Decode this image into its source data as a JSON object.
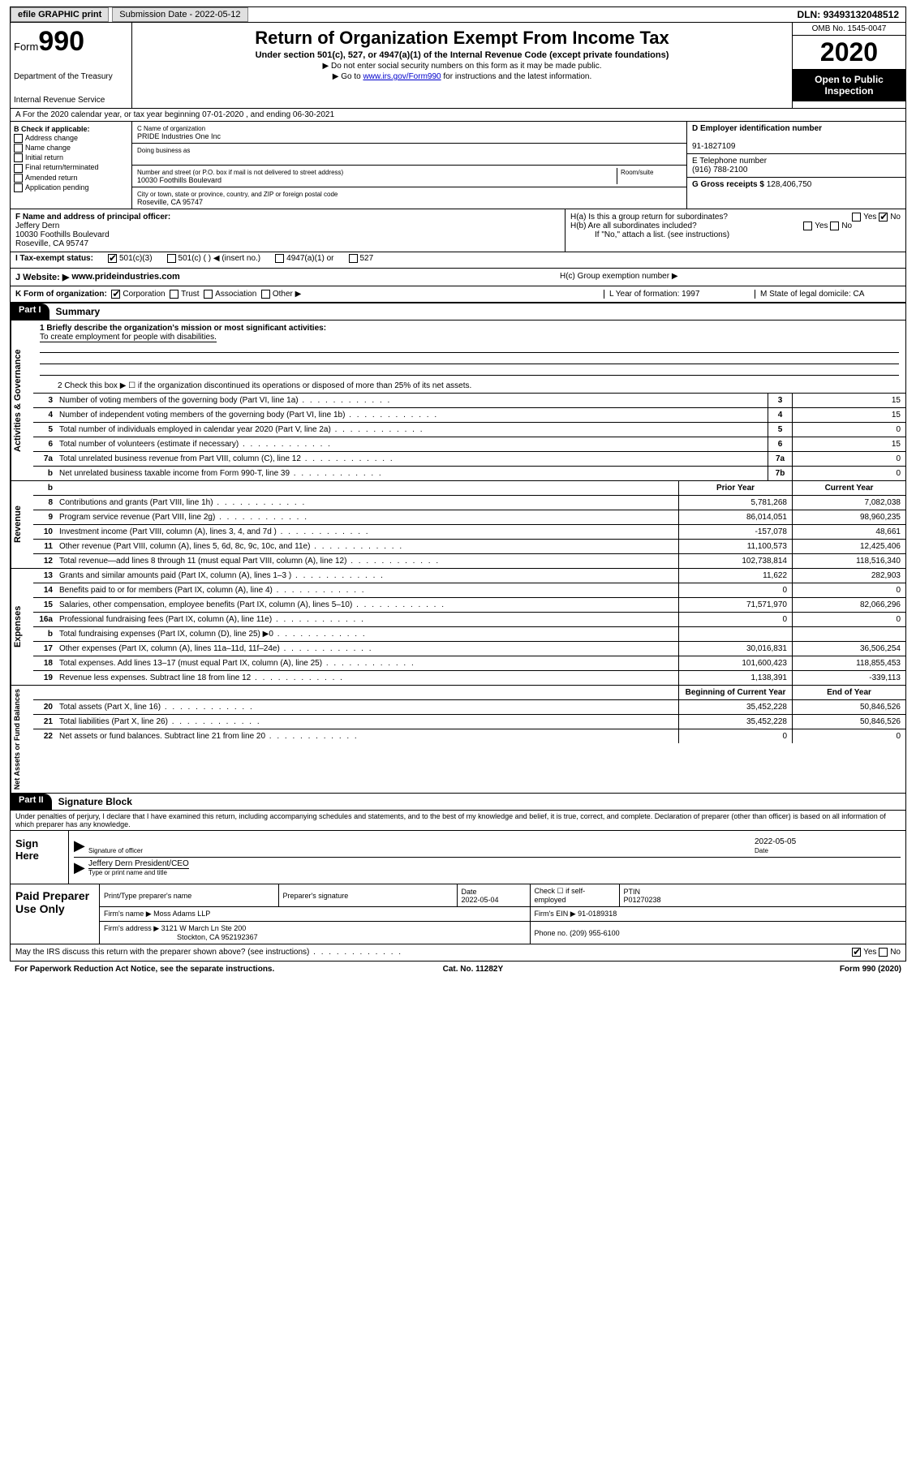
{
  "topbar": {
    "efile": "efile GRAPHIC print",
    "subm_label": "Submission Date",
    "subm_date": "2022-05-12",
    "dln_label": "DLN:",
    "dln": "93493132048512"
  },
  "header": {
    "form_label": "Form",
    "form_num": "990",
    "dept1": "Department of the Treasury",
    "dept2": "Internal Revenue Service",
    "title": "Return of Organization Exempt From Income Tax",
    "sub": "Under section 501(c), 527, or 4947(a)(1) of the Internal Revenue Code (except private foundations)",
    "note1": "▶ Do not enter social security numbers on this form as it may be made public.",
    "note2_pre": "▶ Go to ",
    "note2_link": "www.irs.gov/Form990",
    "note2_post": " for instructions and the latest information.",
    "omb": "OMB No. 1545-0047",
    "year": "2020",
    "inspect": "Open to Public Inspection"
  },
  "period": {
    "text": "A   For the 2020 calendar year, or tax year beginning 07-01-2020   , and ending 06-30-2021"
  },
  "sectB": {
    "label": "B Check if applicable:",
    "opts": [
      "Address change",
      "Name change",
      "Initial return",
      "Final return/terminated",
      "Amended return",
      "Application pending"
    ]
  },
  "sectC": {
    "c_label": "C Name of organization",
    "org": "PRIDE Industries One Inc",
    "dba_label": "Doing business as",
    "addr_label": "Number and street (or P.O. box if mail is not delivered to street address)",
    "room_label": "Room/suite",
    "addr": "10030 Foothills Boulevard",
    "city_label": "City or town, state or province, country, and ZIP or foreign postal code",
    "city": "Roseville, CA  95747"
  },
  "sectD": {
    "label": "D Employer identification number",
    "ein": "91-1827109"
  },
  "sectE": {
    "label": "E Telephone number",
    "phone": "(916) 788-2100"
  },
  "sectG": {
    "label": "G Gross receipts $",
    "amt": "128,406,750"
  },
  "sectF": {
    "label": "F  Name and address of principal officer:",
    "name": "Jeffery Dern",
    "addr1": "10030 Foothills Boulevard",
    "addr2": "Roseville, CA  95747"
  },
  "sectH": {
    "ha": "H(a)  Is this a group return for subordinates?",
    "ha_ans": "No",
    "hb": "H(b)  Are all subordinates included?",
    "hb_note": "If \"No,\" attach a list. (see instructions)",
    "hc": "H(c)  Group exemption number ▶"
  },
  "sectI": {
    "label": "I   Tax-exempt status:",
    "o1": "501(c)(3)",
    "o2": "501(c) (  ) ◀ (insert no.)",
    "o3": "4947(a)(1) or",
    "o4": "527"
  },
  "sectJ": {
    "label": "J   Website: ▶",
    "url": "www.prideindustries.com"
  },
  "sectK": {
    "label": "K Form of organization:",
    "o1": "Corporation",
    "o2": "Trust",
    "o3": "Association",
    "o4": "Other ▶",
    "L": "L Year of formation: 1997",
    "M": "M State of legal domicile: CA"
  },
  "part1": {
    "label": "Part I",
    "title": "Summary"
  },
  "mission": {
    "q": "1  Briefly describe the organization's mission or most significant activities:",
    "text": "To create employment for people with disabilities."
  },
  "q2": "2    Check this box ▶ ☐  if the organization discontinued its operations or disposed of more than 25% of its net assets.",
  "side": {
    "actgov": "Activities & Governance",
    "rev": "Revenue",
    "exp": "Expenses",
    "net": "Net Assets or Fund Balances"
  },
  "lines_gov": [
    {
      "n": "3",
      "d": "Number of voting members of the governing body (Part VI, line 1a)",
      "b": "3",
      "v": "15"
    },
    {
      "n": "4",
      "d": "Number of independent voting members of the governing body (Part VI, line 1b)",
      "b": "4",
      "v": "15"
    },
    {
      "n": "5",
      "d": "Total number of individuals employed in calendar year 2020 (Part V, line 2a)",
      "b": "5",
      "v": "0"
    },
    {
      "n": "6",
      "d": "Total number of volunteers (estimate if necessary)",
      "b": "6",
      "v": "15"
    },
    {
      "n": "7a",
      "d": "Total unrelated business revenue from Part VIII, column (C), line 12",
      "b": "7a",
      "v": "0"
    },
    {
      "n": "b",
      "d": "Net unrelated business taxable income from Form 990-T, line 39",
      "b": "7b",
      "v": "0"
    }
  ],
  "col_hdr": {
    "py": "Prior Year",
    "cy": "Current Year",
    "bcy": "Beginning of Current Year",
    "eoy": "End of Year"
  },
  "lines_rev": [
    {
      "n": "8",
      "d": "Contributions and grants (Part VIII, line 1h)",
      "py": "5,781,268",
      "cy": "7,082,038"
    },
    {
      "n": "9",
      "d": "Program service revenue (Part VIII, line 2g)",
      "py": "86,014,051",
      "cy": "98,960,235"
    },
    {
      "n": "10",
      "d": "Investment income (Part VIII, column (A), lines 3, 4, and 7d )",
      "py": "-157,078",
      "cy": "48,661"
    },
    {
      "n": "11",
      "d": "Other revenue (Part VIII, column (A), lines 5, 6d, 8c, 9c, 10c, and 11e)",
      "py": "11,100,573",
      "cy": "12,425,406"
    },
    {
      "n": "12",
      "d": "Total revenue—add lines 8 through 11 (must equal Part VIII, column (A), line 12)",
      "py": "102,738,814",
      "cy": "118,516,340"
    }
  ],
  "lines_exp": [
    {
      "n": "13",
      "d": "Grants and similar amounts paid (Part IX, column (A), lines 1–3 )",
      "py": "11,622",
      "cy": "282,903"
    },
    {
      "n": "14",
      "d": "Benefits paid to or for members (Part IX, column (A), line 4)",
      "py": "0",
      "cy": "0"
    },
    {
      "n": "15",
      "d": "Salaries, other compensation, employee benefits (Part IX, column (A), lines 5–10)",
      "py": "71,571,970",
      "cy": "82,066,296"
    },
    {
      "n": "16a",
      "d": "Professional fundraising fees (Part IX, column (A), line 11e)",
      "py": "0",
      "cy": "0"
    },
    {
      "n": "b",
      "d": "Total fundraising expenses (Part IX, column (D), line 25) ▶0",
      "py": "",
      "cy": ""
    },
    {
      "n": "17",
      "d": "Other expenses (Part IX, column (A), lines 11a–11d, 11f–24e)",
      "py": "30,016,831",
      "cy": "36,506,254"
    },
    {
      "n": "18",
      "d": "Total expenses. Add lines 13–17 (must equal Part IX, column (A), line 25)",
      "py": "101,600,423",
      "cy": "118,855,453"
    },
    {
      "n": "19",
      "d": "Revenue less expenses. Subtract line 18 from line 12",
      "py": "1,138,391",
      "cy": "-339,113"
    }
  ],
  "lines_net": [
    {
      "n": "20",
      "d": "Total assets (Part X, line 16)",
      "py": "35,452,228",
      "cy": "50,846,526"
    },
    {
      "n": "21",
      "d": "Total liabilities (Part X, line 26)",
      "py": "35,452,228",
      "cy": "50,846,526"
    },
    {
      "n": "22",
      "d": "Net assets or fund balances. Subtract line 21 from line 20",
      "py": "0",
      "cy": "0"
    }
  ],
  "part2": {
    "label": "Part II",
    "title": "Signature Block"
  },
  "perjury": "Under penalties of perjury, I declare that I have examined this return, including accompanying schedules and statements, and to the best of my knowledge and belief, it is true, correct, and complete. Declaration of preparer (other than officer) is based on all information of which preparer has any knowledge.",
  "sign": {
    "here": "Sign Here",
    "sigoff": "Signature of officer",
    "date": "2022-05-05",
    "date_lbl": "Date",
    "name": "Jeffery Dern  President/CEO",
    "name_lbl": "Type or print name and title"
  },
  "paid": {
    "label": "Paid Preparer Use Only",
    "h1": "Print/Type preparer's name",
    "h2": "Preparer's signature",
    "h3": "Date",
    "h3v": "2022-05-04",
    "h4": "Check ☐ if self-employed",
    "h5": "PTIN",
    "h5v": "P01270238",
    "firm_lbl": "Firm's name    ▶",
    "firm": "Moss Adams LLP",
    "ein_lbl": "Firm's EIN ▶",
    "ein": "91-0189318",
    "addr_lbl": "Firm's address ▶",
    "addr1": "3121 W March Ln Ste 200",
    "addr2": "Stockton, CA  952192367",
    "ph_lbl": "Phone no.",
    "ph": "(209) 955-6100"
  },
  "discuss": {
    "q": "May the IRS discuss this return with the preparer shown above? (see instructions)",
    "yes": "Yes",
    "no": "No"
  },
  "footer": {
    "l": "For Paperwork Reduction Act Notice, see the separate instructions.",
    "m": "Cat. No. 11282Y",
    "r": "Form 990 (2020)"
  }
}
